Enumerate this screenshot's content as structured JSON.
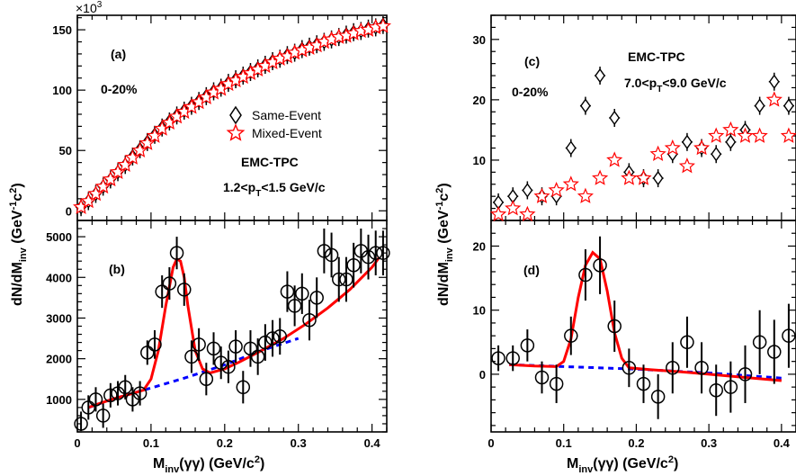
{
  "figure": {
    "xlabel_main": "M",
    "xlabel_sub": "inv",
    "xlabel_rest": "(γγ) (GeV/c",
    "xlabel_sup": "2",
    "xlabel_end": ")",
    "ylabel_main": "dN/dM",
    "ylabel_sub": "inv",
    "ylabel_rest": " (GeV",
    "ylabel_sup1": "-1",
    "ylabel_mid": "c",
    "ylabel_sup2": "2",
    "ylabel_end": ")",
    "exp_label": "×10",
    "exp_sup": "3"
  },
  "colors": {
    "fit": "#ff0000",
    "background": "#0000ff",
    "mixed": "#ff0000",
    "same": "#000000"
  },
  "chart_data": [
    {
      "id": "a",
      "type": "scatter",
      "panel_label": "(a)",
      "centrality": "0-20%",
      "detector": "EMC-TPC",
      "pt_text": "1.2<p",
      "pt_sub": "T",
      "pt_rest": "<1.5 GeV/c",
      "legend": [
        "Same-Event",
        "Mixed-Event"
      ],
      "xlim": [
        0,
        0.42
      ],
      "ylim": [
        -8,
        162
      ],
      "xticks": [
        0,
        0.1,
        0.2,
        0.3,
        0.4
      ],
      "yticks": [
        0,
        50,
        100,
        150
      ],
      "yticklabels": [
        "0",
        "50",
        "100",
        "150"
      ],
      "y_multiplier": "×10^3",
      "series": [
        {
          "name": "Same-Event",
          "marker": "diamond",
          "x": [
            0.005,
            0.015,
            0.025,
            0.035,
            0.045,
            0.055,
            0.065,
            0.075,
            0.085,
            0.095,
            0.105,
            0.115,
            0.125,
            0.135,
            0.145,
            0.155,
            0.165,
            0.175,
            0.185,
            0.195,
            0.205,
            0.215,
            0.225,
            0.235,
            0.245,
            0.255,
            0.265,
            0.275,
            0.285,
            0.295,
            0.305,
            0.315,
            0.325,
            0.335,
            0.345,
            0.355,
            0.365,
            0.375,
            0.385,
            0.395,
            0.405,
            0.415
          ],
          "y": [
            3,
            8,
            14,
            20,
            26,
            32,
            38,
            45,
            51,
            57,
            63,
            69,
            74,
            79,
            83,
            87,
            91,
            95,
            99,
            102,
            106,
            109,
            112,
            115,
            118,
            121,
            124,
            126,
            129,
            131,
            134,
            136,
            138,
            140,
            142,
            144,
            146,
            148,
            149,
            151,
            152,
            154
          ]
        },
        {
          "name": "Mixed-Event",
          "marker": "star",
          "x": [
            0.005,
            0.015,
            0.025,
            0.035,
            0.045,
            0.055,
            0.065,
            0.075,
            0.085,
            0.095,
            0.105,
            0.115,
            0.125,
            0.135,
            0.145,
            0.155,
            0.165,
            0.175,
            0.185,
            0.195,
            0.205,
            0.215,
            0.225,
            0.235,
            0.245,
            0.255,
            0.265,
            0.275,
            0.285,
            0.295,
            0.305,
            0.315,
            0.325,
            0.335,
            0.345,
            0.355,
            0.365,
            0.375,
            0.385,
            0.395,
            0.405,
            0.415
          ],
          "y": [
            3,
            8,
            14,
            20,
            26,
            32,
            38,
            44,
            50,
            56,
            62,
            68,
            73,
            78,
            82,
            86,
            90,
            94,
            98,
            101,
            105,
            108,
            111,
            114,
            117,
            120,
            123,
            126,
            128,
            131,
            133,
            135,
            137,
            140,
            142,
            144,
            145,
            147,
            149,
            150,
            152,
            153
          ]
        }
      ]
    },
    {
      "id": "b",
      "type": "scatter",
      "panel_label": "(b)",
      "xlim": [
        0,
        0.42
      ],
      "ylim": [
        200,
        5400
      ],
      "xticks": [
        0,
        0.1,
        0.2,
        0.3,
        0.4
      ],
      "xticklabels": [
        "0",
        "0.1",
        "0.2",
        "0.3",
        "0.4"
      ],
      "yticks": [
        1000,
        2000,
        3000,
        4000,
        5000
      ],
      "yticklabels": [
        "1000",
        "2000",
        "3000",
        "4000",
        "5000"
      ],
      "points": {
        "x": [
          0.005,
          0.015,
          0.025,
          0.035,
          0.045,
          0.055,
          0.065,
          0.075,
          0.085,
          0.095,
          0.105,
          0.115,
          0.125,
          0.135,
          0.145,
          0.155,
          0.165,
          0.175,
          0.185,
          0.195,
          0.205,
          0.215,
          0.225,
          0.235,
          0.245,
          0.255,
          0.265,
          0.275,
          0.285,
          0.295,
          0.305,
          0.315,
          0.325,
          0.335,
          0.345,
          0.355,
          0.365,
          0.375,
          0.385,
          0.395,
          0.405,
          0.415
        ],
        "y": [
          400,
          800,
          1000,
          600,
          1100,
          1150,
          1300,
          1000,
          1150,
          2150,
          2350,
          3650,
          3850,
          4600,
          3700,
          2050,
          2350,
          1500,
          2250,
          1900,
          1800,
          2300,
          1300,
          2250,
          2050,
          2400,
          2500,
          2550,
          3650,
          3300,
          3600,
          2950,
          3500,
          4650,
          4550,
          3950,
          3950,
          4300,
          4650,
          4500,
          4600,
          4600
        ],
        "err": [
          300,
          300,
          300,
          300,
          300,
          300,
          300,
          300,
          300,
          300,
          350,
          400,
          400,
          400,
          400,
          400,
          400,
          400,
          400,
          400,
          400,
          400,
          400,
          450,
          450,
          450,
          450,
          450,
          500,
          500,
          500,
          500,
          500,
          550,
          550,
          550,
          550,
          550,
          550,
          550,
          550,
          550
        ]
      },
      "fit_curve": {
        "x": [
          0.015,
          0.03,
          0.05,
          0.07,
          0.09,
          0.1,
          0.11,
          0.12,
          0.13,
          0.135,
          0.14,
          0.145,
          0.15,
          0.16,
          0.17,
          0.18,
          0.2,
          0.22,
          0.25,
          0.28,
          0.31,
          0.34,
          0.37,
          0.4,
          0.41
        ],
        "y": [
          800,
          900,
          1020,
          1120,
          1230,
          1500,
          2200,
          3300,
          4250,
          4450,
          4400,
          4000,
          3300,
          2200,
          1750,
          1650,
          1750,
          1920,
          2200,
          2500,
          2850,
          3250,
          3700,
          4250,
          4500
        ]
      },
      "background_curve": {
        "x": [
          0.015,
          0.05,
          0.1,
          0.15,
          0.2,
          0.25,
          0.3
        ],
        "y": [
          800,
          1020,
          1280,
          1550,
          1850,
          2200,
          2500
        ]
      }
    },
    {
      "id": "c",
      "type": "scatter",
      "panel_label": "(c)",
      "centrality": "0-20%",
      "detector": "EMC-TPC",
      "pt_text": "7.0<p",
      "pt_sub": "T",
      "pt_rest": "<9.0 GeV/c",
      "xlim": [
        0,
        0.42
      ],
      "ylim": [
        0,
        34
      ],
      "yticks": [
        10,
        20,
        30
      ],
      "yticklabels": [
        "10",
        "20",
        "30"
      ],
      "series": [
        {
          "name": "Same-Event",
          "marker": "diamond",
          "x": [
            0.01,
            0.03,
            0.05,
            0.07,
            0.09,
            0.11,
            0.13,
            0.15,
            0.17,
            0.19,
            0.21,
            0.23,
            0.25,
            0.27,
            0.29,
            0.31,
            0.33,
            0.35,
            0.37,
            0.39,
            0.41
          ],
          "y": [
            3,
            4,
            5,
            4,
            4,
            12,
            19,
            24,
            17,
            8,
            7,
            7,
            11,
            13,
            12,
            11,
            13,
            15,
            19,
            23,
            19
          ]
        },
        {
          "name": "Mixed-Event",
          "marker": "star",
          "x": [
            0.01,
            0.03,
            0.05,
            0.07,
            0.09,
            0.11,
            0.13,
            0.15,
            0.17,
            0.19,
            0.21,
            0.23,
            0.25,
            0.27,
            0.29,
            0.31,
            0.33,
            0.35,
            0.37,
            0.39,
            0.41
          ],
          "y": [
            1,
            2,
            1,
            4,
            5,
            6,
            4,
            7,
            10,
            7,
            7,
            11,
            12,
            9,
            12,
            14,
            15,
            14,
            14,
            20,
            14
          ]
        }
      ]
    },
    {
      "id": "d",
      "type": "scatter",
      "panel_label": "(d)",
      "xlim": [
        0,
        0.42
      ],
      "ylim": [
        -9,
        24
      ],
      "xticks": [
        0,
        0.1,
        0.2,
        0.3,
        0.4
      ],
      "xticklabels": [
        "0",
        "0.1",
        "0.2",
        "0.3",
        "0.4"
      ],
      "yticks": [
        0,
        10,
        20
      ],
      "yticklabels": [
        "0",
        "10",
        "20"
      ],
      "points": {
        "x": [
          0.01,
          0.03,
          0.05,
          0.07,
          0.09,
          0.11,
          0.13,
          0.15,
          0.17,
          0.19,
          0.21,
          0.23,
          0.25,
          0.27,
          0.29,
          0.31,
          0.33,
          0.35,
          0.37,
          0.39,
          0.41
        ],
        "y": [
          2.5,
          2.5,
          4.5,
          -0.5,
          -1.5,
          6,
          15.5,
          17,
          7.5,
          1,
          -1.5,
          -3.5,
          1,
          5,
          1,
          -2.5,
          -2,
          0,
          5,
          3.5,
          6
        ],
        "err": [
          2,
          2,
          2.5,
          2.5,
          3,
          3,
          4,
          4.5,
          4,
          3,
          3,
          3.5,
          4,
          4,
          4,
          4,
          4,
          4.5,
          5,
          5,
          5
        ]
      },
      "fit_curve": {
        "x": [
          0.025,
          0.06,
          0.09,
          0.1,
          0.11,
          0.12,
          0.13,
          0.14,
          0.15,
          0.16,
          0.17,
          0.18,
          0.19,
          0.22,
          0.26,
          0.3,
          0.35,
          0.4
        ],
        "y": [
          1.5,
          1.3,
          1.2,
          2.0,
          5.5,
          12,
          17,
          19,
          18,
          13,
          6.5,
          2.5,
          1.0,
          0.7,
          0.4,
          0.0,
          -0.5,
          -1.0
        ]
      },
      "background_curve": {
        "x": [
          0.025,
          0.1,
          0.2,
          0.3,
          0.4
        ],
        "y": [
          1.5,
          1.2,
          0.8,
          0.2,
          -0.6
        ]
      }
    }
  ]
}
